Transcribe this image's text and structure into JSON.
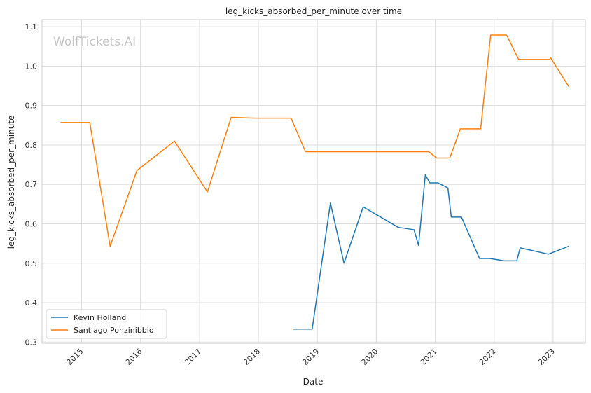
{
  "watermark": "WolfTickets.AI",
  "chart_data": {
    "type": "line",
    "title": "leg_kicks_absorbed_per_minute over time",
    "xlabel": "Date",
    "ylabel": "leg_kicks_absorbed_per_minute",
    "xlim": [
      "2014-05-01",
      "2023-07-20"
    ],
    "ylim": [
      0.297,
      1.118
    ],
    "x_ticks": [
      "2015",
      "2016",
      "2017",
      "2018",
      "2019",
      "2020",
      "2021",
      "2022",
      "2023"
    ],
    "y_ticks": [
      "0.3",
      "0.4",
      "0.5",
      "0.6",
      "0.7",
      "0.8",
      "0.9",
      "1.0",
      "1.1"
    ],
    "grid": true,
    "legend_position": "lower-left",
    "series": [
      {
        "name": "Kevin Holland",
        "color": "#1f77b4",
        "points": [
          [
            "2018-08-04",
            0.333
          ],
          [
            "2018-11-30",
            0.333
          ],
          [
            "2019-03-23",
            0.653
          ],
          [
            "2019-06-15",
            0.5
          ],
          [
            "2019-10-12",
            0.643
          ],
          [
            "2020-05-16",
            0.591
          ],
          [
            "2020-08-22",
            0.585
          ],
          [
            "2020-09-19",
            0.545
          ],
          [
            "2020-10-31",
            0.724
          ],
          [
            "2020-11-28",
            0.704
          ],
          [
            "2021-01-16",
            0.704
          ],
          [
            "2021-03-20",
            0.691
          ],
          [
            "2021-04-10",
            0.617
          ],
          [
            "2021-06-12",
            0.617
          ],
          [
            "2021-10-02",
            0.512
          ],
          [
            "2021-12-04",
            0.512
          ],
          [
            "2022-03-05",
            0.506
          ],
          [
            "2022-05-21",
            0.506
          ],
          [
            "2022-06-11",
            0.539
          ],
          [
            "2022-12-03",
            0.523
          ],
          [
            "2023-04-08",
            0.543
          ]
        ]
      },
      {
        "name": "Santiago Ponzinibbio",
        "color": "#ff7f0e",
        "points": [
          [
            "2014-08-23",
            0.857
          ],
          [
            "2015-02-21",
            0.857
          ],
          [
            "2015-06-27",
            0.543
          ],
          [
            "2015-12-10",
            0.735
          ],
          [
            "2016-07-30",
            0.81
          ],
          [
            "2017-02-19",
            0.681
          ],
          [
            "2017-07-16",
            0.87
          ],
          [
            "2017-12-09",
            0.868
          ],
          [
            "2018-07-22",
            0.868
          ],
          [
            "2018-10-20",
            0.783
          ],
          [
            "2020-11-21",
            0.783
          ],
          [
            "2021-01-10",
            0.767
          ],
          [
            "2021-04-01",
            0.767
          ],
          [
            "2021-06-05",
            0.841
          ],
          [
            "2021-10-09",
            0.841
          ],
          [
            "2021-12-10",
            1.079
          ],
          [
            "2022-03-19",
            1.079
          ],
          [
            "2022-06-01",
            1.017
          ],
          [
            "2022-12-10",
            1.017
          ],
          [
            "2022-12-17",
            1.021
          ],
          [
            "2023-04-08",
            0.948
          ]
        ]
      }
    ]
  }
}
